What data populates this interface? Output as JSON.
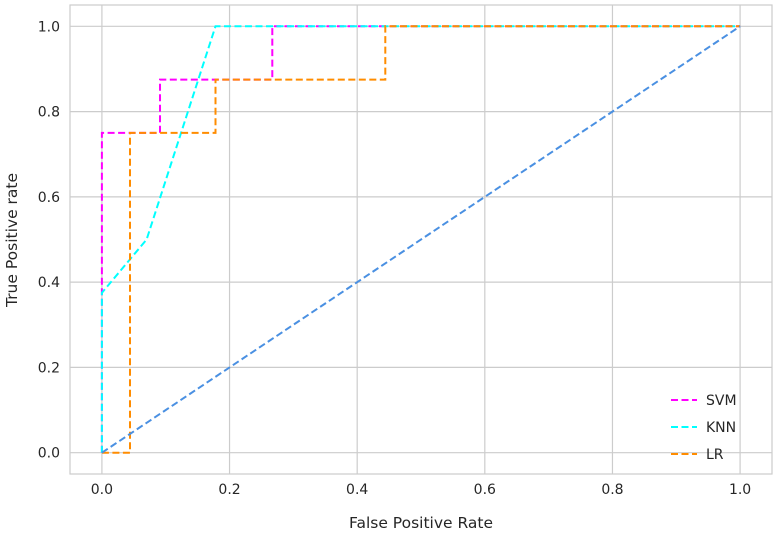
{
  "chart_data": {
    "type": "line",
    "title": "",
    "xlabel": "False Positive Rate",
    "ylabel": "True Positive rate",
    "xlim": [
      -0.05,
      1.05
    ],
    "ylim": [
      -0.05,
      1.05
    ],
    "xticks": [
      "0.0",
      "0.2",
      "0.4",
      "0.6",
      "0.8",
      "1.0"
    ],
    "yticks": [
      "0.0",
      "0.2",
      "0.4",
      "0.6",
      "0.8",
      "1.0"
    ],
    "grid": true,
    "legend_position": "lower-right",
    "series": [
      {
        "name": "SVM",
        "color": "#ff00ff",
        "style": "dashed",
        "x": [
          0.0,
          0.0,
          0.0,
          0.091,
          0.091,
          0.267,
          0.267,
          1.0
        ],
        "y": [
          0.0,
          0.75,
          0.75,
          0.75,
          0.875,
          0.875,
          1.0,
          1.0
        ]
      },
      {
        "name": "KNN",
        "color": "#00ffff",
        "style": "dashed",
        "x": [
          0.0,
          0.0,
          0.07,
          0.178,
          1.0
        ],
        "y": [
          0.0,
          0.375,
          0.5,
          1.0,
          1.0
        ]
      },
      {
        "name": "LR",
        "color": "#ff8c00",
        "style": "dashed",
        "x": [
          0.0,
          0.044,
          0.044,
          0.178,
          0.178,
          0.444,
          0.444,
          1.0
        ],
        "y": [
          0.0,
          0.0,
          0.75,
          0.75,
          0.875,
          0.875,
          1.0,
          1.0
        ]
      },
      {
        "color": "#4a90e2",
        "style": "dashed",
        "x": [
          0.0,
          1.0
        ],
        "y": [
          0.0,
          1.0
        ]
      }
    ]
  }
}
